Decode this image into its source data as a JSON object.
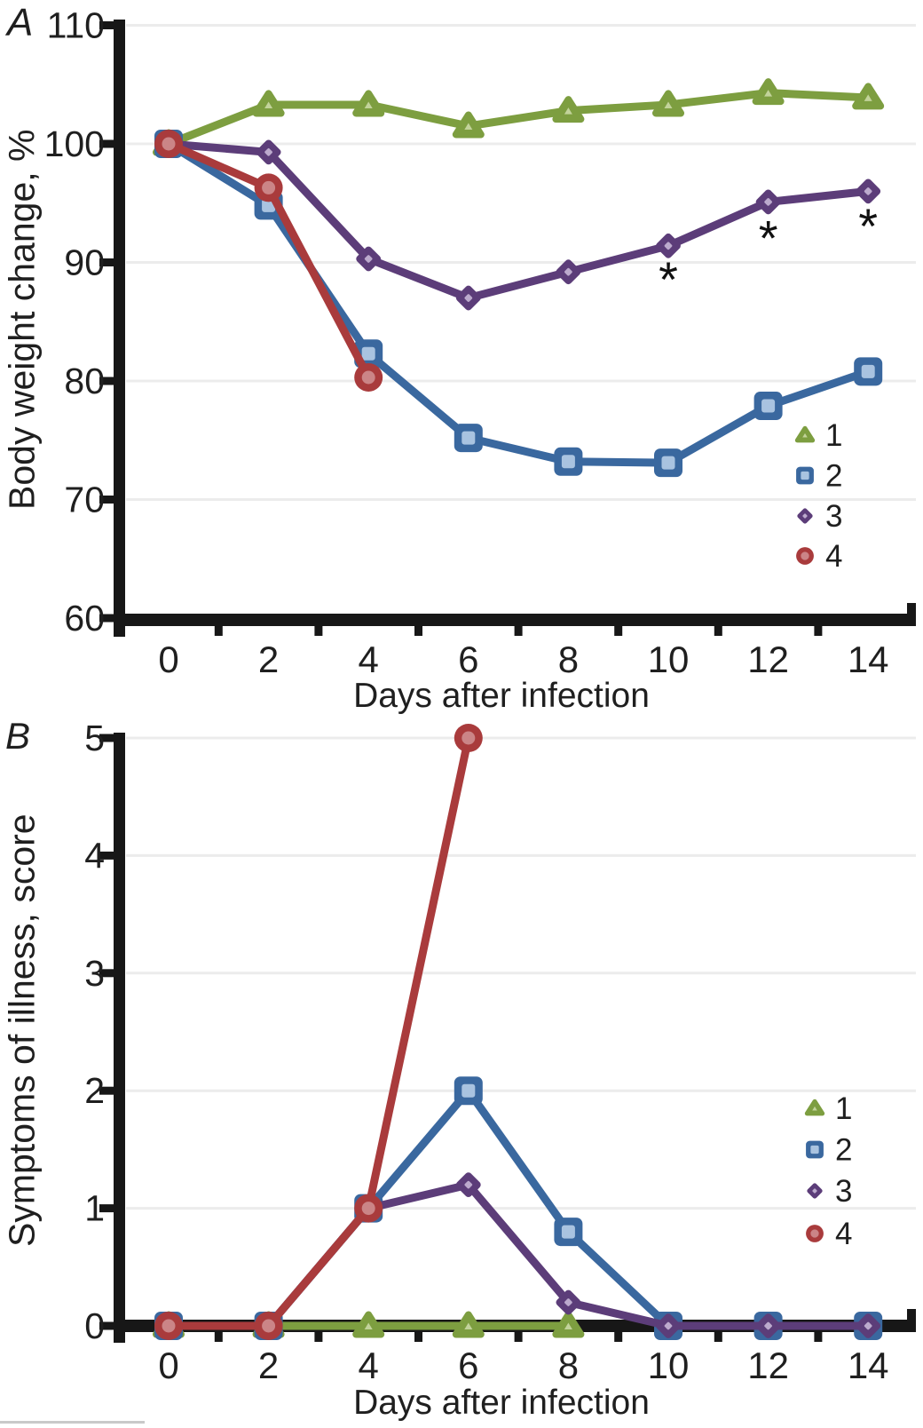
{
  "figure": {
    "background": "#ffffff",
    "axis_color": "#171717",
    "grid_color": "#ececec",
    "text_color": "#1f1f1f",
    "legend_labels": [
      "1",
      "2",
      "3",
      "4"
    ]
  },
  "chart_data": [
    {
      "type": "line",
      "panel_label": "A",
      "title": "",
      "xlabel": "Days after infection",
      "ylabel": "Body weight change, %",
      "xlim": [
        -1,
        15
      ],
      "ylim": [
        60,
        110
      ],
      "xticks": [
        0,
        2,
        4,
        6,
        8,
        10,
        12,
        14
      ],
      "minor_xticks": [
        1,
        3,
        5,
        7,
        9,
        11,
        13
      ],
      "yticks": [
        60,
        70,
        80,
        90,
        100,
        110
      ],
      "grid": true,
      "legend_position": "inside-right",
      "series": [
        {
          "name": "1",
          "marker": "triangle",
          "color": "#7d9e40",
          "inner": "#c2d39a",
          "x": [
            0,
            2,
            4,
            6,
            8,
            10,
            12,
            14
          ],
          "y": [
            100,
            103.3,
            103.3,
            101.5,
            102.8,
            103.3,
            104.3,
            103.9
          ]
        },
        {
          "name": "2",
          "marker": "square",
          "color": "#3a689f",
          "inner": "#a9c3e0",
          "x": [
            0,
            2,
            4,
            6,
            8,
            10,
            12,
            14
          ],
          "y": [
            100,
            94.8,
            82.3,
            75.2,
            73.2,
            73.1,
            77.9,
            80.8
          ]
        },
        {
          "name": "3",
          "marker": "diamond",
          "color": "#5c3d79",
          "inner": "#bcaacd",
          "x": [
            0,
            2,
            4,
            6,
            8,
            10,
            12,
            14
          ],
          "y": [
            100,
            99.3,
            90.3,
            87.0,
            89.2,
            91.4,
            95.1,
            96.0
          ]
        },
        {
          "name": "4",
          "marker": "circle",
          "color": "#a93b3c",
          "inner": "#cb8587",
          "x": [
            0,
            2,
            4
          ],
          "y": [
            100,
            96.3,
            80.3
          ]
        }
      ],
      "annotations": [
        {
          "text": "*",
          "x": 10,
          "y": 89.2
        },
        {
          "text": "*",
          "x": 12,
          "y": 92.7
        },
        {
          "text": "*",
          "x": 14,
          "y": 93.7
        }
      ]
    },
    {
      "type": "line",
      "panel_label": "B",
      "title": "",
      "xlabel": "Days after infection",
      "ylabel": "Symptoms of illness, score",
      "xlim": [
        -1,
        15
      ],
      "ylim": [
        0,
        5
      ],
      "xticks": [
        0,
        2,
        4,
        6,
        8,
        10,
        12,
        14
      ],
      "minor_xticks": [
        1,
        3,
        5,
        7,
        9,
        11,
        13
      ],
      "yticks": [
        0,
        1,
        2,
        3,
        4,
        5
      ],
      "grid": true,
      "legend_position": "inside-right",
      "series": [
        {
          "name": "1",
          "marker": "triangle",
          "color": "#7d9e40",
          "inner": "#c2d39a",
          "x": [
            0,
            2,
            4,
            6,
            8
          ],
          "y": [
            0,
            0,
            0,
            0,
            0
          ]
        },
        {
          "name": "2",
          "marker": "square",
          "color": "#3a689f",
          "inner": "#a9c3e0",
          "x": [
            0,
            2,
            4,
            6,
            8,
            10,
            12,
            14
          ],
          "y": [
            0,
            0,
            1,
            2,
            0.8,
            0,
            0,
            0
          ]
        },
        {
          "name": "3",
          "marker": "diamond",
          "color": "#5c3d79",
          "inner": "#bcaacd",
          "x": [
            0,
            2,
            4,
            6,
            8,
            10,
            12,
            14
          ],
          "y": [
            0,
            0,
            1,
            1.2,
            0.2,
            0,
            0,
            0
          ]
        },
        {
          "name": "4",
          "marker": "circle",
          "color": "#a93b3c",
          "inner": "#cb8587",
          "x": [
            0,
            2,
            4,
            6
          ],
          "y": [
            0,
            0,
            1,
            5
          ]
        }
      ],
      "annotations": []
    }
  ]
}
